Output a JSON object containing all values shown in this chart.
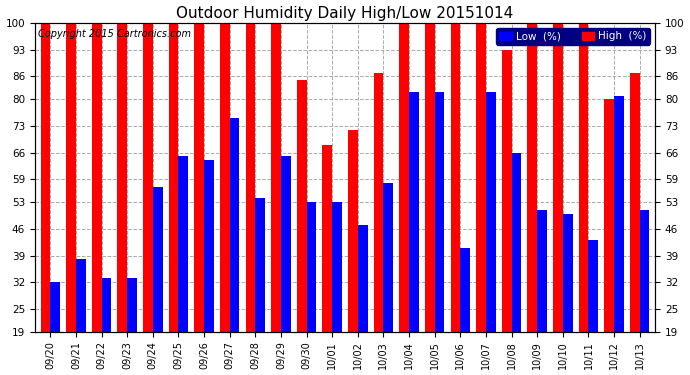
{
  "title": "Outdoor Humidity Daily High/Low 20151014",
  "copyright": "Copyright 2015 Cartronics.com",
  "legend_low_label": "Low  (%)",
  "legend_high_label": "High  (%)",
  "dates": [
    "09/20",
    "09/21",
    "09/22",
    "09/23",
    "09/24",
    "09/25",
    "09/26",
    "09/27",
    "09/28",
    "09/29",
    "09/30",
    "10/01",
    "10/02",
    "10/03",
    "10/04",
    "10/05",
    "10/06",
    "10/07",
    "10/08",
    "10/09",
    "10/10",
    "10/11",
    "10/12",
    "10/13"
  ],
  "high": [
    100,
    100,
    100,
    100,
    100,
    100,
    100,
    100,
    100,
    100,
    85,
    68,
    72,
    87,
    100,
    100,
    100,
    100,
    93,
    100,
    100,
    100,
    80,
    87
  ],
  "low": [
    32,
    38,
    33,
    33,
    57,
    65,
    64,
    75,
    54,
    65,
    53,
    53,
    47,
    58,
    82,
    82,
    41,
    82,
    66,
    51,
    50,
    43,
    81,
    51
  ],
  "bar_color_high": "#ff0000",
  "bar_color_low": "#0000ff",
  "background_color": "#ffffff",
  "grid_color": "#aaaaaa",
  "ymin": 19,
  "ymax": 100,
  "yticks": [
    19,
    25,
    32,
    39,
    46,
    53,
    59,
    66,
    73,
    80,
    86,
    93,
    100
  ],
  "title_fontsize": 11,
  "copyright_fontsize": 7,
  "legend_fontsize": 7.5,
  "bar_width": 0.38,
  "figwidth": 6.9,
  "figheight": 3.75,
  "dpi": 100
}
